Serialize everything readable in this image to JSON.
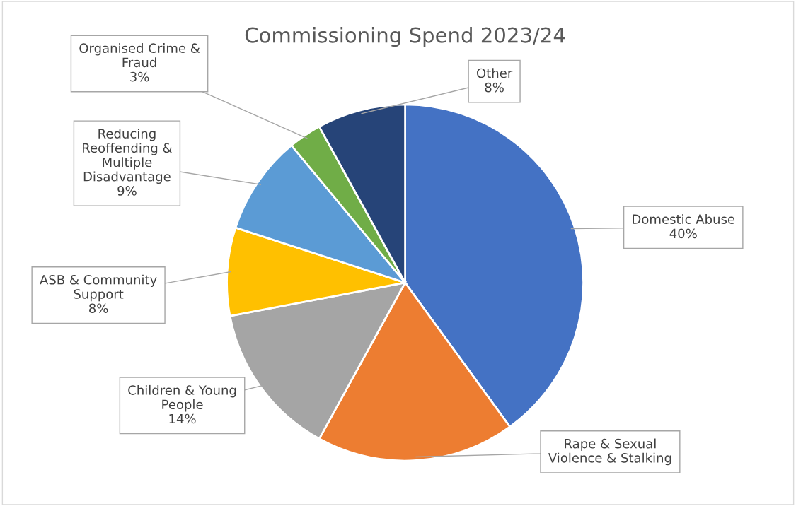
{
  "chart_data": {
    "type": "pie",
    "title": "Commissioning Spend 2023/24",
    "categories": [
      "Domestic Abuse",
      "Rape & Sexual Violence & Stalking",
      "Children & Young People",
      "ASB & Community Support",
      "Reducing Reoffending & Multiple Disadvantage",
      "Organised Crime & Fraud",
      "Other"
    ],
    "values": [
      40,
      18,
      14,
      8,
      9,
      3,
      8
    ],
    "value_labels": [
      "40%",
      null,
      "14%",
      "8%",
      "9%",
      "3%",
      "8%"
    ],
    "colors": [
      "#4472c4",
      "#ed7d31",
      "#a5a5a5",
      "#ffc000",
      "#5b9bd5",
      "#70ad47",
      "#264478"
    ]
  }
}
